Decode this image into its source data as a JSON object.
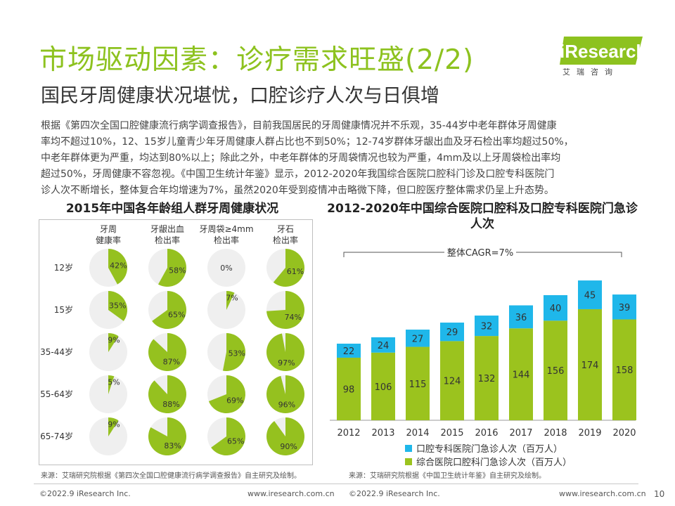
{
  "header": {
    "title": "市场驱动因素：诊疗需求旺盛(2/2)",
    "subtitle": "国民牙周健康状况堪忧，口腔诊疗人次与日俱增"
  },
  "logo": {
    "name": "iResearch",
    "sub": "艾瑞咨询"
  },
  "body_lines": [
    "根据《第四次全国口腔健康流行病学调查报告》，目前我国居民的牙周健康情况并不乐观，35-44岁中老年群体牙周健康",
    "率均不超过10%，12、15岁儿童青少年牙周健康人群占比也不到50%；12-74岁群体牙龈出血及牙石检出率均超过50%，",
    "中老年群体更为严重，均达到80%以上；除此之外，中老年群体的牙周袋情况也较为严重，4mm及以上牙周袋检出率均",
    "超过50%，牙周健康不容忽视。《中国卫生统计年鉴》显示，2012-2020年我国综合医院口腔科门诊及口腔专科医院门",
    "诊人次不断增长，整体复合年均增速为7%，虽然2020年受到疫情冲击略微下降，但口腔医疗整体需求仍呈上升态势。"
  ],
  "chart_data": [
    {
      "type": "pie",
      "title": "2015年中国各年龄组人群牙周健康状况",
      "columns": [
        "牙周\n健康率",
        "牙龈出血\n检出率",
        "牙周袋≥4mm\n检出率",
        "牙石\n检出率"
      ],
      "rows": [
        "12岁",
        "15岁",
        "35-44岁",
        "55-64岁",
        "65-74岁"
      ],
      "values": [
        [
          42,
          58,
          0,
          61
        ],
        [
          35,
          65,
          7,
          74
        ],
        [
          9,
          87,
          53,
          97
        ],
        [
          5,
          88,
          69,
          96
        ],
        [
          9,
          83,
          65,
          90
        ]
      ],
      "unit": "%",
      "colors": {
        "fill": "#95c11f",
        "rest": "#efefef"
      }
    },
    {
      "type": "bar",
      "stacked": true,
      "title": "2012-2020年中国综合医院口腔科及口腔专科医院门急诊人次",
      "categories": [
        "2012",
        "2013",
        "2014",
        "2015",
        "2016",
        "2017",
        "2018",
        "2019",
        "2020"
      ],
      "series": [
        {
          "name": "综合医院口腔科门急诊人次（百万人）",
          "values": [
            98,
            106,
            115,
            124,
            132,
            144,
            156,
            174,
            158
          ],
          "color": "#9bc31e"
        },
        {
          "name": "口腔专科医院门急诊人次（百万人）",
          "values": [
            22,
            24,
            27,
            29,
            32,
            36,
            40,
            45,
            39
          ],
          "color": "#1fb7ea"
        }
      ],
      "annotation": "整体CAGR=7%",
      "ylim": [
        0,
        240
      ]
    }
  ],
  "sources": {
    "left": "来源：艾瑞研究院根据《第四次全国口腔健康流行病学调查报告》自主研究及绘制。",
    "right": "来源：艾瑞研究院根据《中国卫生统计年鉴》自主研究及绘制。"
  },
  "footer": {
    "left_copyright": "©2022.9 iResearch Inc.",
    "left_url": "www.iresearch.com.cn",
    "right_copyright": "©2022.9 iResearch Inc.",
    "right_url": "www.iresearch.com.cn",
    "page": "10"
  }
}
